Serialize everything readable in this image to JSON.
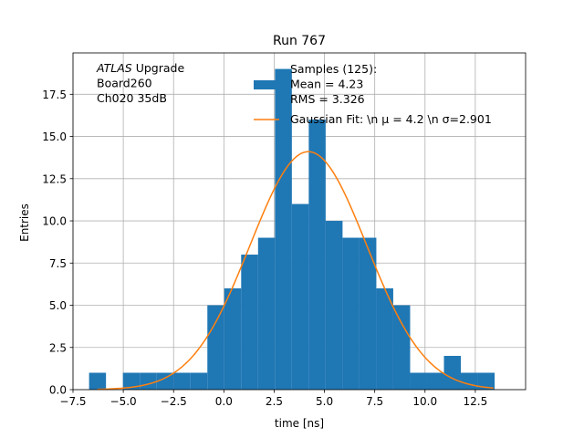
{
  "chart_data": {
    "type": "bar",
    "title": "Run 767",
    "xlabel": "time [ns]",
    "ylabel": "Entries",
    "xlim": [
      -7.5,
      15.0
    ],
    "ylim": [
      0,
      19.95
    ],
    "grid": true,
    "x_ticks": [
      -7.5,
      -5.0,
      -2.5,
      0.0,
      2.5,
      5.0,
      7.5,
      10.0,
      12.5
    ],
    "x_tick_labels": [
      "−7.5",
      "−5.0",
      "−2.5",
      "0.0",
      "2.5",
      "5.0",
      "7.5",
      "10.0",
      "12.5"
    ],
    "y_ticks": [
      0.0,
      2.5,
      5.0,
      7.5,
      10.0,
      12.5,
      15.0,
      17.5
    ],
    "y_tick_labels": [
      "0.0",
      "2.5",
      "5.0",
      "7.5",
      "10.0",
      "12.5",
      "15.0",
      "17.5"
    ],
    "histogram": {
      "name": "Samples (125):\n Mean = 4.23\n RMS = 3.326",
      "color": "#1f77b4",
      "bin_edges": [
        -6.7,
        -5.86,
        -5.02,
        -4.18,
        -3.34,
        -2.5,
        -1.66,
        -0.82,
        0.02,
        0.86,
        1.7,
        2.54,
        3.38,
        4.22,
        5.06,
        5.9,
        6.74,
        7.58,
        8.42,
        9.26,
        10.1,
        10.94,
        11.78,
        12.62,
        13.46
      ],
      "counts": [
        1,
        0,
        1,
        1,
        1,
        1,
        1,
        5,
        6,
        8,
        9,
        19,
        11,
        16,
        10,
        9,
        9,
        6,
        5,
        1,
        1,
        2,
        1,
        1
      ]
    },
    "fit": {
      "name": "Gaussian Fit: \\n $\\mu$ = 4.2 \\n $\\sigma$=2.901",
      "color": "#ff7f0e",
      "mu": 4.2,
      "sigma": 2.901,
      "amplitude": 14.1,
      "x_range": [
        -6.3,
        13.4
      ]
    },
    "annotation": {
      "lines": [
        "ATLAS Upgrade",
        " Board260",
        " Ch020 35dB"
      ]
    },
    "legend_placement": "top-right",
    "legend": {
      "hist_lines": [
        "Samples (125):",
        " Mean = 4.23",
        " RMS = 3.326"
      ],
      "fit_label": "Gaussian Fit: \\n μ = 4.2 \\n σ=2.901"
    }
  }
}
